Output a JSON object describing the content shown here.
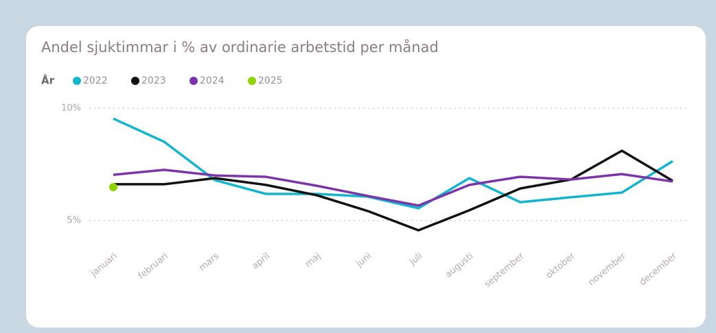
{
  "chart_data": {
    "type": "line",
    "title": "Andel sjuktimmar i % av ordinarie arbetstid per månad",
    "legend_title": "År",
    "categories": [
      "januari",
      "februari",
      "mars",
      "april",
      "maj",
      "juni",
      "juli",
      "augusti",
      "september",
      "oktober",
      "november",
      "december"
    ],
    "series": [
      {
        "name": "2022",
        "color": "#12b5cb",
        "values": [
          9.54,
          8.51,
          6.8,
          6.19,
          6.19,
          6.07,
          5.55,
          6.89,
          5.82,
          6.04,
          6.25,
          7.65
        ]
      },
      {
        "name": "2023",
        "color": "#111111",
        "values": [
          6.62,
          6.62,
          6.89,
          6.59,
          6.13,
          5.43,
          4.57,
          5.46,
          6.43,
          6.83,
          8.11,
          6.77
        ]
      },
      {
        "name": "2024",
        "color": "#7b35a8",
        "values": [
          7.04,
          7.26,
          7.01,
          6.95,
          6.55,
          6.1,
          5.67,
          6.59,
          6.95,
          6.83,
          7.07,
          6.74
        ]
      },
      {
        "name": "2025",
        "color": "#8fd400",
        "values": [
          6.49,
          null,
          null,
          null,
          null,
          null,
          null,
          null,
          null,
          null,
          null,
          null
        ]
      }
    ],
    "ylim": [
      4.5,
      10
    ],
    "yticks": [
      {
        "value": 5,
        "label": "5%"
      },
      {
        "value": 10,
        "label": "10%"
      }
    ],
    "grid": true
  }
}
